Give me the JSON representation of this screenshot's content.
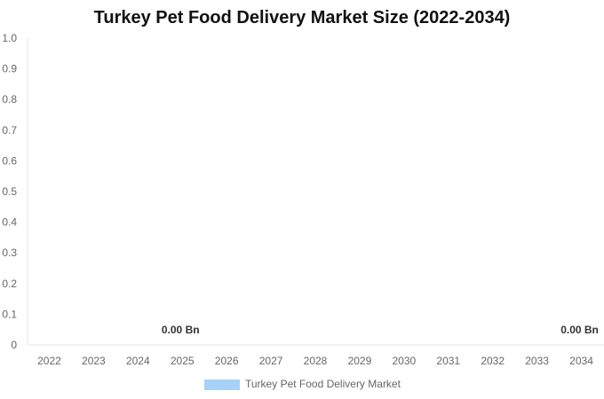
{
  "chart_data": {
    "type": "bar",
    "title": "Turkey Pet Food Delivery Market Size (2022-2034)",
    "xlabel": "",
    "ylabel": "",
    "categories": [
      "2022",
      "2023",
      "2024",
      "2025",
      "2026",
      "2027",
      "2028",
      "2029",
      "2030",
      "2031",
      "2032",
      "2033",
      "2034"
    ],
    "series": [
      {
        "name": "Turkey Pet Food Delivery Market",
        "color": "#a8d1f7",
        "values": [
          0,
          0,
          0,
          0,
          0,
          0,
          0,
          0,
          0,
          0,
          0,
          0,
          0
        ]
      }
    ],
    "data_labels": [
      {
        "category": "2025",
        "text": "0.00 Bn"
      },
      {
        "category": "2034",
        "text": "0.00 Bn"
      }
    ],
    "ylim": [
      0,
      1.0
    ],
    "yticks": [
      "0",
      "0.1",
      "0.2",
      "0.3",
      "0.4",
      "0.5",
      "0.6",
      "0.7",
      "0.8",
      "0.9",
      "1.0"
    ],
    "grid": false,
    "legend_position": "bottom"
  }
}
